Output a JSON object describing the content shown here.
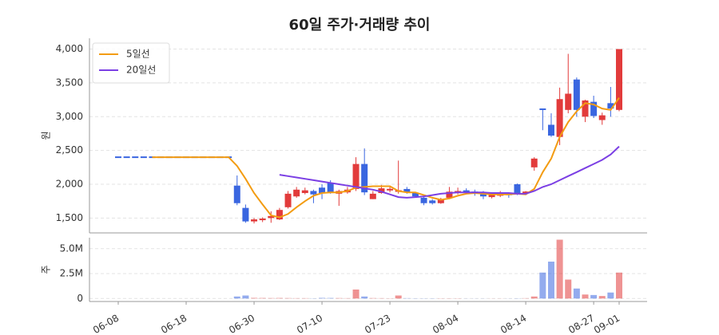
{
  "chart_data": {
    "type": "candlestick",
    "title": "60일 주가·거래량 추이",
    "categories": [
      "06-08",
      null,
      null,
      null,
      null,
      null,
      null,
      null,
      "06-18",
      null,
      null,
      null,
      null,
      null,
      null,
      null,
      "06-30",
      null,
      null,
      null,
      null,
      null,
      null,
      null,
      "07-10",
      null,
      null,
      null,
      null,
      null,
      null,
      null,
      "07-23",
      null,
      null,
      null,
      null,
      null,
      null,
      null,
      "08-04",
      null,
      null,
      null,
      null,
      null,
      null,
      null,
      "08-14",
      null,
      null,
      null,
      null,
      null,
      null,
      null,
      "08-27",
      null,
      null,
      "09-01"
    ],
    "open": [
      2400,
      2400,
      2400,
      2400,
      2400,
      2400,
      2400,
      2400,
      2400,
      2400,
      2400,
      2400,
      2400,
      2400,
      1980,
      1650,
      1450,
      1460,
      1500,
      1480,
      1660,
      1820,
      1870,
      1900,
      1950,
      2020,
      1860,
      1880,
      1930,
      2300,
      1780,
      1870,
      1900,
      1880,
      1930,
      1870,
      1800,
      1760,
      1720,
      1800,
      1870,
      1910,
      1880,
      1860,
      1810,
      1830,
      1850,
      2000,
      1860,
      2250,
      3110,
      2880,
      2700,
      3100,
      3550,
      3000,
      3220,
      2950,
      3200,
      3100
    ],
    "high": [
      2400,
      2400,
      2400,
      2400,
      2400,
      2400,
      2400,
      2400,
      2400,
      2400,
      2400,
      2400,
      2400,
      2400,
      2130,
      1700,
      1500,
      1510,
      1600,
      1650,
      1900,
      1960,
      1950,
      1920,
      2000,
      2060,
      1920,
      1960,
      2400,
      2530,
      1900,
      1990,
      1980,
      2350,
      1960,
      1880,
      1820,
      1780,
      1800,
      1960,
      1950,
      1940,
      1920,
      1900,
      1880,
      1900,
      1880,
      2010,
      1900,
      2400,
      3120,
      3050,
      3430,
      3930,
      3580,
      3250,
      3310,
      3060,
      3440,
      4000
    ],
    "low": [
      2400,
      2400,
      2400,
      2400,
      2400,
      2400,
      2400,
      2400,
      2400,
      2400,
      2400,
      2400,
      2400,
      2400,
      1690,
      1430,
      1420,
      1440,
      1430,
      1470,
      1640,
      1800,
      1850,
      1720,
      1780,
      1860,
      1680,
      1860,
      1900,
      1840,
      1780,
      1860,
      1880,
      1860,
      1860,
      1800,
      1690,
      1700,
      1710,
      1780,
      1850,
      1860,
      1830,
      1780,
      1790,
      1810,
      1800,
      1840,
      1850,
      2200,
      2800,
      2700,
      2580,
      3050,
      3000,
      2920,
      2980,
      2880,
      3000,
      3080
    ],
    "close": [
      2400,
      2400,
      2400,
      2400,
      2400,
      2400,
      2400,
      2400,
      2400,
      2400,
      2400,
      2400,
      2400,
      2400,
      1720,
      1450,
      1480,
      1480,
      1530,
      1620,
      1860,
      1920,
      1910,
      1850,
      1870,
      1880,
      1900,
      1920,
      2300,
      1880,
      1860,
      1940,
      1920,
      1900,
      1880,
      1820,
      1720,
      1720,
      1780,
      1890,
      1900,
      1880,
      1860,
      1820,
      1850,
      1860,
      1830,
      1850,
      1880,
      2380,
      3100,
      2720,
      3260,
      3340,
      3100,
      3240,
      3010,
      3020,
      3120,
      4000
    ],
    "up_color": "#e23b3b",
    "down_color": "#3a66e0",
    "ylabel": "원",
    "ylim": [
      1280,
      4160
    ],
    "yticks": [
      {
        "value": 1500,
        "label": "1,500"
      },
      {
        "value": 2000,
        "label": "2,000"
      },
      {
        "value": 2500,
        "label": "2,500"
      },
      {
        "value": 3000,
        "label": "3,000"
      },
      {
        "value": 3500,
        "label": "3,500"
      },
      {
        "value": 4000,
        "label": "4,000"
      }
    ],
    "grid": true,
    "legend": "upper left",
    "series": [
      {
        "name": "5일선",
        "color": "#f39c12",
        "values": [
          null,
          null,
          null,
          null,
          2400,
          2400,
          2400,
          2400,
          2400,
          2400,
          2400,
          2400,
          2400,
          2400,
          2270,
          2080,
          1870,
          1700,
          1540,
          1510,
          1560,
          1660,
          1750,
          1830,
          1870,
          1880,
          1880,
          1900,
          1950,
          1960,
          1970,
          1970,
          1970,
          1900,
          1880,
          1880,
          1840,
          1800,
          1770,
          1790,
          1830,
          1860,
          1870,
          1860,
          1850,
          1850,
          1850,
          1860,
          1850,
          1930,
          2180,
          2380,
          2700,
          2920,
          3080,
          3200,
          3180,
          3120,
          3100,
          3280
        ]
      },
      {
        "name": "20일선",
        "color": "#7b3fe4",
        "values": [
          null,
          null,
          null,
          null,
          null,
          null,
          null,
          null,
          null,
          null,
          null,
          null,
          null,
          null,
          null,
          null,
          null,
          null,
          null,
          2140,
          2120,
          2100,
          2080,
          2060,
          2040,
          2020,
          2000,
          1980,
          1960,
          1940,
          1920,
          1890,
          1850,
          1810,
          1800,
          1810,
          1820,
          1840,
          1860,
          1870,
          1880,
          1880,
          1880,
          1880,
          1870,
          1870,
          1870,
          1860,
          1860,
          1900,
          1960,
          2000,
          2060,
          2120,
          2180,
          2240,
          2300,
          2360,
          2440,
          2560
        ]
      }
    ],
    "volume": {
      "ylabel": "주",
      "ylim": [
        -300000,
        6100000
      ],
      "yticks": [
        0,
        {
          "value": 2500000,
          "label": "2.5M"
        },
        {
          "value": 5000000,
          "label": "5.0M"
        }
      ],
      "values": [
        0,
        0,
        0,
        0,
        0,
        0,
        0,
        0,
        0,
        0,
        0,
        0,
        0,
        0,
        200000,
        300000,
        60000,
        50000,
        40000,
        50000,
        40000,
        30000,
        30000,
        20000,
        60000,
        50000,
        40000,
        30000,
        900000,
        200000,
        40000,
        30000,
        20000,
        300000,
        30000,
        20000,
        20000,
        20000,
        20000,
        20000,
        20000,
        10000,
        10000,
        10000,
        10000,
        10000,
        10000,
        20000,
        30000,
        200000,
        2600000,
        3700000,
        5900000,
        1900000,
        1000000,
        400000,
        350000,
        250000,
        600000,
        2600000
      ]
    }
  }
}
